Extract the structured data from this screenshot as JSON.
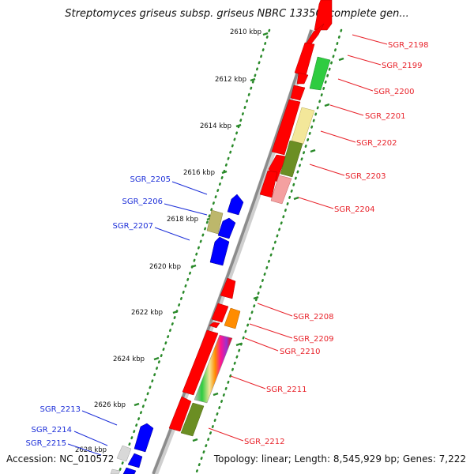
{
  "title": "Streptomyces griseus subsp. griseus NBRC 13350, complete gen...",
  "footer": {
    "accession": "Accession: NC_010572",
    "topology": "Topology: linear; Length: 8,545,929 bp; Genes: 7,222"
  },
  "colors": {
    "backbone": "#8c8c8c",
    "tick": "#2a8a2a",
    "right_label": "#e8222a",
    "left_label": "#1c2ed8",
    "red_gene": "#ff0000",
    "blue_gene": "#0000ff",
    "green_gene": "#2ecc40",
    "yellow_gene": "#f3e79a",
    "olive_gene": "#6b8e23",
    "pink_gene": "#f4a0a0",
    "khaki_gene": "#bdb76b",
    "orange_gene": "#ff8c00",
    "gray_gene": "#d8d8d8"
  },
  "scale_labels": [
    "2610 kbp",
    "2612 kbp",
    "2614 kbp",
    "2616 kbp",
    "2618 kbp",
    "2620 kbp",
    "2622 kbp",
    "2624 kbp",
    "2626 kbp",
    "2628 kbp"
  ],
  "right_genes": [
    "SGR_2198",
    "SGR_2199",
    "SGR_2200",
    "SGR_2201",
    "SGR_2202",
    "SGR_2203",
    "SGR_2204",
    "SGR_2208",
    "SGR_2209",
    "SGR_2210",
    "SGR_2211",
    "SGR_2212"
  ],
  "left_genes": [
    "SGR_2205",
    "SGR_2206",
    "SGR_2207",
    "SGR_2213",
    "SGR_2214",
    "SGR_2215"
  ]
}
